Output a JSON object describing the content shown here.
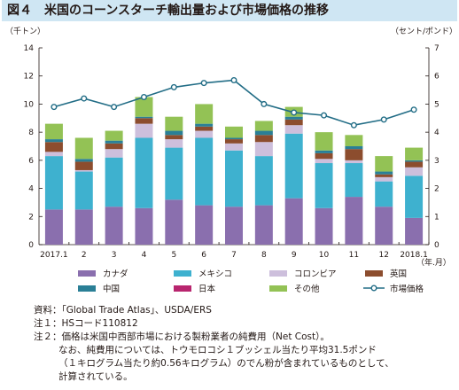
{
  "title": "図４　米国のコーンスターチ輸出量および市場価格の推移",
  "chart_data": {
    "type": "bar",
    "stacked": true,
    "secondary_type": "line",
    "left_unit": "（千トン）",
    "right_unit": "（セント/ポンド）",
    "x_unit": "（年.月）",
    "categories": [
      "2017.1",
      "2",
      "3",
      "4",
      "5",
      "6",
      "7",
      "8",
      "9",
      "10",
      "11",
      "12",
      "2018.1"
    ],
    "ylim": [
      0,
      14
    ],
    "yticks": [
      0,
      2,
      4,
      6,
      8,
      10,
      12,
      14
    ],
    "y2lim": [
      0,
      7
    ],
    "y2ticks": [
      0,
      1,
      2,
      3,
      4,
      5,
      6,
      7
    ],
    "grid": false,
    "legend_position": "bottom",
    "series": [
      {
        "name": "カナダ",
        "color": "#8a6fae",
        "values": [
          2.5,
          2.5,
          2.7,
          2.6,
          3.2,
          2.8,
          2.7,
          2.8,
          3.3,
          2.6,
          3.4,
          2.7,
          1.9
        ]
      },
      {
        "name": "メキシコ",
        "color": "#3eb1cf",
        "values": [
          3.8,
          2.7,
          3.5,
          5.0,
          3.7,
          4.8,
          4.0,
          3.5,
          4.6,
          3.2,
          2.4,
          1.8,
          3.0
        ]
      },
      {
        "name": "コロンビア",
        "color": "#cdbfdc",
        "values": [
          0.3,
          0.1,
          0.6,
          1.0,
          0.6,
          0.5,
          0.5,
          1.0,
          0.6,
          0.3,
          0.2,
          0.3,
          0.6
        ]
      },
      {
        "name": "英国",
        "color": "#8c4d2e",
        "values": [
          0.7,
          0.6,
          0.4,
          0.4,
          0.3,
          0.3,
          0.3,
          0.5,
          0.4,
          0.4,
          0.8,
          0.2,
          0.4
        ]
      },
      {
        "name": "中国",
        "color": "#2a7f96",
        "values": [
          0.2,
          0.2,
          0.2,
          0.1,
          0.3,
          0.2,
          0.1,
          0.3,
          0.2,
          0.2,
          0.2,
          0.2,
          0.1
        ]
      },
      {
        "name": "日本",
        "color": "#b8256e",
        "values": [
          0,
          0,
          0,
          0,
          0,
          0,
          0,
          0,
          0,
          0,
          0,
          0,
          0
        ]
      },
      {
        "name": "その他",
        "color": "#93c255",
        "values": [
          1.1,
          1.5,
          0.7,
          1.4,
          1.0,
          1.4,
          0.8,
          0.7,
          0.7,
          1.3,
          0.8,
          1.1,
          0.9
        ]
      }
    ],
    "line": {
      "name": "市場価格",
      "color": "#226d86",
      "axis": "right",
      "values": [
        4.9,
        5.2,
        4.9,
        5.25,
        5.6,
        5.75,
        5.85,
        5.0,
        4.7,
        4.6,
        4.25,
        4.45,
        4.8
      ]
    }
  },
  "notes": {
    "source": "資料：「Global Trade Atlas」、USDA/ERS",
    "note1": "注１：HSコード110812",
    "note2_line1": "注２：価格は米国中西部市場における製粉業者の純費用（Net Cost）。",
    "note2_line2": "なお、純費用については、トウモロコシ１ブッシェル当たり平均31.5ポンド",
    "note2_line3": "（１キログラム当たり約0.56キログラム）のでん粉が含まれているものとして、",
    "note2_line4": "計算されている。"
  }
}
